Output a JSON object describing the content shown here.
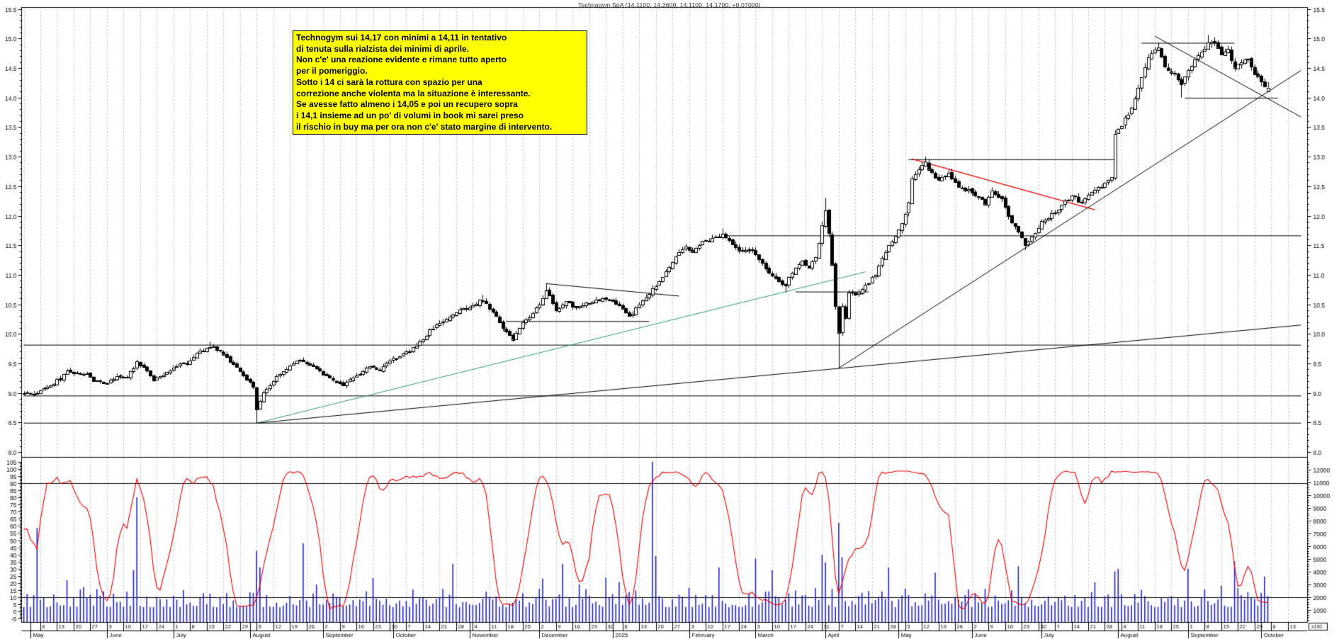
{
  "window": {
    "title": "Technogym SpA (14.1100, 14.2600, 14.1100, 14.1700, +0.07000)"
  },
  "annotation": {
    "text": "Technogym sui 14,17 con minimi a 14,11 in tentativo\ndi tenuta sulla rialzista dei minimi di aprile.\nNon c'e' una reazione evidente e rimane tutto aperto\nper il pomeriggio.\nSotto i 14 ci sarà la rottura con spazio per una\ncorrezione anche violenta ma la situazione è interessante.\nSe avesse fatto almeno i 14,05 e poi un recupero sopra\ni 14,1 insieme ad un po' di volumi in book mi sarei preso\nil rischio in buy ma per ora non c'e' stato margine di intervento.",
    "bg_color": "#ffff00"
  },
  "chart_data": {
    "type": "candlestick",
    "symbol": "Technogym SpA",
    "quote": {
      "open": 14.11,
      "high": 14.26,
      "low": 14.11,
      "close": 14.17,
      "change": "+0.07000"
    },
    "calendar": {
      "start": "2024-04-29",
      "end": "2025-10-17",
      "last_candle": "2025-10-03"
    },
    "price_axis": {
      "min": 7.95,
      "max": 15.55,
      "label_step": 0.5,
      "minor_step": 0.1,
      "first_label": 8.0,
      "last_label": 15.5
    },
    "oscillator_axis": {
      "min": -5,
      "max": 105,
      "label_step": 5,
      "levels": [
        90,
        10
      ]
    },
    "volume_axis": {
      "label_min": 1000,
      "label_max": 13000,
      "label_step": 1000,
      "minor_step": 200,
      "note": "x100"
    },
    "oscillator": {
      "kind": "stochastic",
      "period": 12,
      "smooth": 3
    },
    "seed": 20251003,
    "price_anchors": [
      [
        "2024-04-29",
        9.02
      ],
      [
        "2024-05-03",
        8.98
      ],
      [
        "2024-05-08",
        9.1
      ],
      [
        "2024-05-14",
        9.25
      ],
      [
        "2024-05-16",
        9.4
      ],
      [
        "2024-05-21",
        9.32
      ],
      [
        "2024-05-24",
        9.35
      ],
      [
        "2024-05-28",
        9.22
      ],
      [
        "2024-06-03",
        9.16
      ],
      [
        "2024-06-06",
        9.3
      ],
      [
        "2024-06-11",
        9.25
      ],
      [
        "2024-06-14",
        9.52
      ],
      [
        "2024-06-18",
        9.45
      ],
      [
        "2024-06-21",
        9.22
      ],
      [
        "2024-06-26",
        9.3
      ],
      [
        "2024-07-01",
        9.45
      ],
      [
        "2024-07-05",
        9.52
      ],
      [
        "2024-07-10",
        9.68
      ],
      [
        "2024-07-16",
        9.8
      ],
      [
        "2024-07-19",
        9.7
      ],
      [
        "2024-07-24",
        9.55
      ],
      [
        "2024-07-30",
        9.3
      ],
      [
        "2024-08-02",
        9.1
      ],
      [
        "2024-08-05",
        8.72
      ],
      [
        "2024-08-07",
        9.0
      ],
      [
        "2024-08-12",
        9.22
      ],
      [
        "2024-08-16",
        9.42
      ],
      [
        "2024-08-22",
        9.57
      ],
      [
        "2024-08-28",
        9.45
      ],
      [
        "2024-09-03",
        9.28
      ],
      [
        "2024-09-10",
        9.12
      ],
      [
        "2024-09-16",
        9.3
      ],
      [
        "2024-09-20",
        9.45
      ],
      [
        "2024-09-25",
        9.38
      ],
      [
        "2024-09-30",
        9.55
      ],
      [
        "2024-10-04",
        9.65
      ],
      [
        "2024-10-10",
        9.8
      ],
      [
        "2024-10-16",
        10.05
      ],
      [
        "2024-10-22",
        10.22
      ],
      [
        "2024-10-28",
        10.38
      ],
      [
        "2024-11-04",
        10.5
      ],
      [
        "2024-11-07",
        10.58
      ],
      [
        "2024-11-12",
        10.35
      ],
      [
        "2024-11-15",
        10.12
      ],
      [
        "2024-11-20",
        9.92
      ],
      [
        "2024-11-25",
        10.18
      ],
      [
        "2024-11-28",
        10.32
      ],
      [
        "2024-12-04",
        10.72
      ],
      [
        "2024-12-09",
        10.42
      ],
      [
        "2024-12-12",
        10.55
      ],
      [
        "2024-12-17",
        10.42
      ],
      [
        "2024-12-20",
        10.52
      ],
      [
        "2024-12-27",
        10.6
      ],
      [
        "2025-01-03",
        10.48
      ],
      [
        "2025-01-08",
        10.28
      ],
      [
        "2025-01-13",
        10.5
      ],
      [
        "2025-01-16",
        10.68
      ],
      [
        "2025-01-20",
        10.82
      ],
      [
        "2025-01-23",
        11.05
      ],
      [
        "2025-01-28",
        11.3
      ],
      [
        "2025-01-31",
        11.48
      ],
      [
        "2025-02-04",
        11.42
      ],
      [
        "2025-02-07",
        11.55
      ],
      [
        "2025-02-12",
        11.62
      ],
      [
        "2025-02-17",
        11.7
      ],
      [
        "2025-02-20",
        11.52
      ],
      [
        "2025-02-25",
        11.38
      ],
      [
        "2025-02-28",
        11.42
      ],
      [
        "2025-03-05",
        11.18
      ],
      [
        "2025-03-10",
        10.98
      ],
      [
        "2025-03-14",
        10.82
      ],
      [
        "2025-03-18",
        11.05
      ],
      [
        "2025-03-21",
        11.22
      ],
      [
        "2025-03-25",
        11.12
      ],
      [
        "2025-03-27",
        11.3
      ],
      [
        "2025-03-31",
        11.85
      ],
      [
        "2025-04-01",
        12.12
      ],
      [
        "2025-04-02",
        11.7
      ],
      [
        "2025-04-03",
        11.15
      ],
      [
        "2025-04-04",
        10.45
      ],
      [
        "2025-04-07",
        10.0
      ],
      [
        "2025-04-08",
        10.45
      ],
      [
        "2025-04-09",
        10.25
      ],
      [
        "2025-04-10",
        10.7
      ],
      [
        "2025-04-14",
        10.68
      ],
      [
        "2025-04-16",
        10.74
      ],
      [
        "2025-04-22",
        11.02
      ],
      [
        "2025-04-24",
        11.28
      ],
      [
        "2025-04-28",
        11.5
      ],
      [
        "2025-04-30",
        11.66
      ],
      [
        "2025-05-02",
        11.85
      ],
      [
        "2025-05-06",
        12.2
      ],
      [
        "2025-05-07",
        12.6
      ],
      [
        "2025-05-09",
        12.8
      ],
      [
        "2025-05-13",
        12.88
      ],
      [
        "2025-05-15",
        12.72
      ],
      [
        "2025-05-19",
        12.6
      ],
      [
        "2025-05-22",
        12.72
      ],
      [
        "2025-05-27",
        12.5
      ],
      [
        "2025-05-30",
        12.42
      ],
      [
        "2025-06-04",
        12.3
      ],
      [
        "2025-06-06",
        12.18
      ],
      [
        "2025-06-10",
        12.42
      ],
      [
        "2025-06-13",
        12.28
      ],
      [
        "2025-06-17",
        11.98
      ],
      [
        "2025-06-20",
        11.7
      ],
      [
        "2025-06-24",
        11.52
      ],
      [
        "2025-06-26",
        11.65
      ],
      [
        "2025-07-01",
        11.88
      ],
      [
        "2025-07-04",
        12.02
      ],
      [
        "2025-07-09",
        12.18
      ],
      [
        "2025-07-14",
        12.35
      ],
      [
        "2025-07-17",
        12.22
      ],
      [
        "2025-07-22",
        12.42
      ],
      [
        "2025-07-25",
        12.48
      ],
      [
        "2025-07-30",
        12.65
      ],
      [
        "2025-07-31",
        13.38
      ],
      [
        "2025-08-04",
        13.55
      ],
      [
        "2025-08-06",
        13.72
      ],
      [
        "2025-08-08",
        13.95
      ],
      [
        "2025-08-12",
        14.35
      ],
      [
        "2025-08-14",
        14.7
      ],
      [
        "2025-08-18",
        14.82
      ],
      [
        "2025-08-19",
        14.86
      ],
      [
        "2025-08-21",
        14.55
      ],
      [
        "2025-08-26",
        14.4
      ],
      [
        "2025-08-28",
        14.22
      ],
      [
        "2025-09-01",
        14.48
      ],
      [
        "2025-09-03",
        14.62
      ],
      [
        "2025-09-05",
        14.78
      ],
      [
        "2025-09-09",
        14.92
      ],
      [
        "2025-09-11",
        14.9
      ],
      [
        "2025-09-15",
        14.72
      ],
      [
        "2025-09-17",
        14.78
      ],
      [
        "2025-09-19",
        14.52
      ],
      [
        "2025-09-23",
        14.58
      ],
      [
        "2025-09-25",
        14.68
      ],
      [
        "2025-09-29",
        14.42
      ],
      [
        "2025-10-01",
        14.3
      ],
      [
        "2025-10-02",
        14.18
      ],
      [
        "2025-10-03",
        14.17
      ]
    ],
    "wick_overrides": {
      "2024-07-16": {
        "high": 9.87
      },
      "2024-08-05": {
        "low": 8.49
      },
      "2024-11-07": {
        "high": 10.66
      },
      "2024-12-04": {
        "high": 10.86
      },
      "2025-02-17": {
        "high": 11.78
      },
      "2025-03-14": {
        "low": 10.7
      },
      "2025-04-01": {
        "high": 12.3
      },
      "2025-04-07": {
        "low": 9.42
      },
      "2025-05-13": {
        "high": 13.0
      },
      "2025-06-24": {
        "low": 11.42
      },
      "2025-08-19": {
        "high": 14.93
      },
      "2025-08-28": {
        "low": 14.0
      },
      "2025-09-09": {
        "high": 15.06
      },
      "2025-09-11": {
        "high": 15.02
      }
    },
    "last_ohlc": {
      "date": "2025-10-03",
      "o": 14.11,
      "h": 14.26,
      "l": 14.11,
      "c": 14.17
    },
    "volume_spikes": {
      "2024-05-03": 7400,
      "2024-06-13": 4100,
      "2024-06-14": 9800,
      "2024-08-05": 5600,
      "2024-08-06": 4300,
      "2024-08-23": 6200,
      "2024-10-25": 4600,
      "2024-12-11": 4600,
      "2025-01-17": 12600,
      "2025-01-20": 5200,
      "2025-02-14": 4300,
      "2025-03-03": 5000,
      "2025-03-10": 4100,
      "2025-03-31": 5300,
      "2025-04-01": 4700,
      "2025-04-07": 7800,
      "2025-04-08": 5100,
      "2025-04-28": 4300,
      "2025-05-16": 3900,
      "2025-06-20": 4400,
      "2025-07-31": 4000,
      "2025-08-01": 4200,
      "2025-09-01": 4200,
      "2025-09-19": 4800,
      "2025-10-02": 3600
    },
    "lines": [
      {
        "name": "resistance-9.8",
        "x1": "2024-04-29",
        "p1": 9.81,
        "x2": "2025-10-17",
        "p2": 9.81,
        "color": "#000000"
      },
      {
        "name": "support-8.95",
        "x1": "2024-04-29",
        "p1": 8.95,
        "x2": "2025-10-17",
        "p2": 8.95,
        "color": "#000000"
      },
      {
        "name": "support-8.5",
        "x1": "2024-04-29",
        "p1": 8.49,
        "x2": "2025-10-17",
        "p2": 8.49,
        "color": "#000000"
      },
      {
        "name": "resistance-11.66",
        "x1": "2025-02-17",
        "p1": 11.66,
        "x2": "2025-10-17",
        "p2": 11.66,
        "color": "#000000"
      },
      {
        "name": "shelf-10.21",
        "x1": "2024-11-18",
        "p1": 10.21,
        "x2": "2025-01-16",
        "p2": 10.21,
        "color": "#000000"
      },
      {
        "name": "descending-dec",
        "x1": "2024-12-04",
        "p1": 10.85,
        "x2": "2025-01-29",
        "p2": 10.64,
        "color": "#000000"
      },
      {
        "name": "shelf-10.71",
        "x1": "2025-03-19",
        "p1": 10.71,
        "x2": "2025-04-18",
        "p2": 10.71,
        "color": "#000000"
      },
      {
        "name": "resistance-12.95",
        "x1": "2025-05-06",
        "p1": 12.95,
        "x2": "2025-07-31",
        "p2": 12.95,
        "color": "#000000"
      },
      {
        "name": "red-descending",
        "x1": "2025-05-07",
        "p1": 12.96,
        "x2": "2025-07-23",
        "p2": 12.1,
        "color": "#ee0000"
      },
      {
        "name": "green-uptrend",
        "x1": "2024-08-05",
        "p1": 8.49,
        "x2": "2025-04-17",
        "p2": 11.05,
        "color": "#2f9e68"
      },
      {
        "name": "long-gentle-uptrend",
        "x1": "2024-08-05",
        "p1": 8.49,
        "x2": "2025-10-17",
        "p2": 10.15,
        "color": "#000000"
      },
      {
        "name": "april-lows-uptrend",
        "x1": "2025-04-07",
        "p1": 9.42,
        "x2": "2025-10-17",
        "p2": 14.46,
        "color": "#000000"
      },
      {
        "name": "resistance-14.92",
        "x1": "2025-08-12",
        "p1": 14.92,
        "x2": "2025-09-19",
        "p2": 14.92,
        "color": "#000000"
      },
      {
        "name": "support-14.0",
        "x1": "2025-08-29",
        "p1": 13.99,
        "x2": "2025-10-08",
        "p2": 13.99,
        "color": "#000000"
      },
      {
        "name": "descending-top",
        "x1": "2025-08-18",
        "p1": 15.04,
        "x2": "2025-10-17",
        "p2": 13.67,
        "color": "#000000"
      }
    ],
    "month_labels": [
      {
        "ym": "2024-05",
        "label": "May"
      },
      {
        "ym": "2024-06",
        "label": "June"
      },
      {
        "ym": "2024-07",
        "label": "July"
      },
      {
        "ym": "2024-08",
        "label": "August"
      },
      {
        "ym": "2024-09",
        "label": "September"
      },
      {
        "ym": "2024-10",
        "label": "October"
      },
      {
        "ym": "2024-11",
        "label": "November"
      },
      {
        "ym": "2024-12",
        "label": "December"
      },
      {
        "ym": "2025-01",
        "label": "2025"
      },
      {
        "ym": "2025-02",
        "label": "February"
      },
      {
        "ym": "2025-03",
        "label": "March"
      },
      {
        "ym": "2025-04",
        "label": "April"
      },
      {
        "ym": "2025-05",
        "label": "May"
      },
      {
        "ym": "2025-06",
        "label": "June"
      },
      {
        "ym": "2025-07",
        "label": "July"
      },
      {
        "ym": "2025-08",
        "label": "August"
      },
      {
        "ym": "2025-09",
        "label": "September"
      },
      {
        "ym": "2025-10",
        "label": "October"
      }
    ],
    "colors": {
      "background": "#ffffff",
      "candle_up": "#ffffff",
      "candle_down": "#000000",
      "candle_outline": "#000000",
      "volume_bar": "#2424cc",
      "oscillator_line": "#ee0000",
      "grid": "#b8b8b8",
      "axis_text": "#000000",
      "border": "#000000"
    }
  }
}
